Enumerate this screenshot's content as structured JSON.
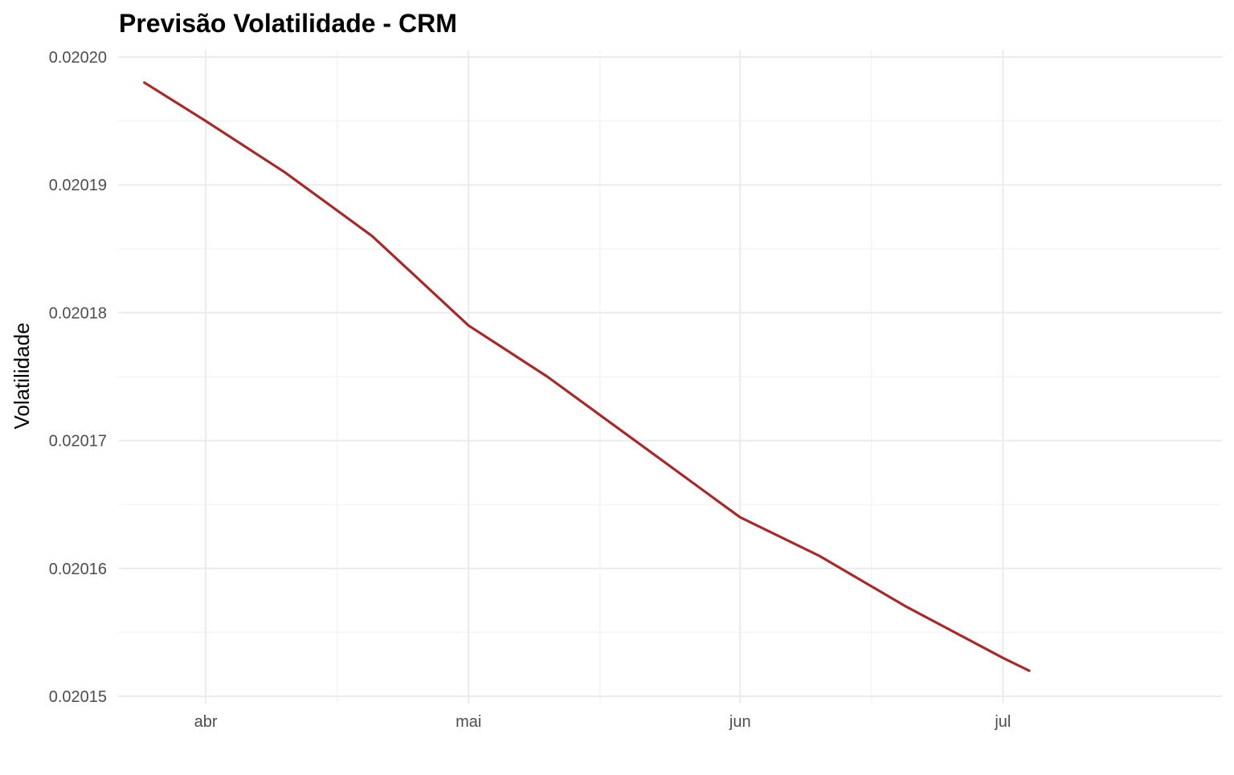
{
  "chart_data": {
    "type": "line",
    "title": "Previsão Volatilidade - CRM",
    "xlabel": "",
    "ylabel": "Volatilidade",
    "x_tick_labels": [
      {
        "label": "abr",
        "date": "2024-04-01"
      },
      {
        "label": "mai",
        "date": "2024-05-01"
      },
      {
        "label": "jun",
        "date": "2024-06-01"
      },
      {
        "label": "jul",
        "date": "2024-07-01"
      }
    ],
    "x_minor_ticks": [
      "2024-04-16",
      "2024-05-16",
      "2024-06-16"
    ],
    "y_ticks": [
      0.02015,
      0.02016,
      0.02017,
      0.02018,
      0.02019,
      0.0202
    ],
    "y_tick_labels": [
      "0.02015",
      "0.02016",
      "0.02017",
      "0.02018",
      "0.02019",
      "0.02020"
    ],
    "xlim": [
      "2024-03-22",
      "2024-07-26"
    ],
    "ylim": [
      0.02015,
      0.0202
    ],
    "grid": true,
    "series": [
      {
        "color": "#a52a2a",
        "x": [
          "2024-03-25",
          "2024-04-01",
          "2024-04-10",
          "2024-04-20",
          "2024-05-01",
          "2024-05-10",
          "2024-05-20",
          "2024-06-01",
          "2024-06-10",
          "2024-06-20",
          "2024-07-01",
          "2024-07-04"
        ],
        "values": [
          0.020198,
          0.020195,
          0.020191,
          0.020186,
          0.020179,
          0.020175,
          0.02017,
          0.020164,
          0.020161,
          0.020157,
          0.020153,
          0.020152
        ]
      }
    ]
  }
}
